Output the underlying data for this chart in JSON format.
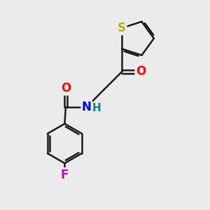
{
  "background_color": "#ebebeb",
  "bond_color": "#1a1a1a",
  "bond_width": 1.8,
  "atom_S": {
    "symbol": "S",
    "color": "#b8b800",
    "fontsize": 12,
    "fontweight": "bold"
  },
  "atom_O1": {
    "symbol": "O",
    "color": "#ff0000",
    "fontsize": 12,
    "fontweight": "bold"
  },
  "atom_O2": {
    "symbol": "O",
    "color": "#ff0000",
    "fontsize": 12,
    "fontweight": "bold"
  },
  "atom_N": {
    "symbol": "N",
    "color": "#0000ee",
    "fontsize": 12,
    "fontweight": "bold"
  },
  "atom_H": {
    "symbol": "H",
    "color": "#008888",
    "fontsize": 11,
    "fontweight": "bold"
  },
  "atom_F": {
    "symbol": "F",
    "color": "#cc00cc",
    "fontsize": 12,
    "fontweight": "bold"
  },
  "figsize": [
    3.0,
    3.0
  ],
  "dpi": 100,
  "xlim": [
    0,
    10
  ],
  "ylim": [
    0,
    10
  ]
}
